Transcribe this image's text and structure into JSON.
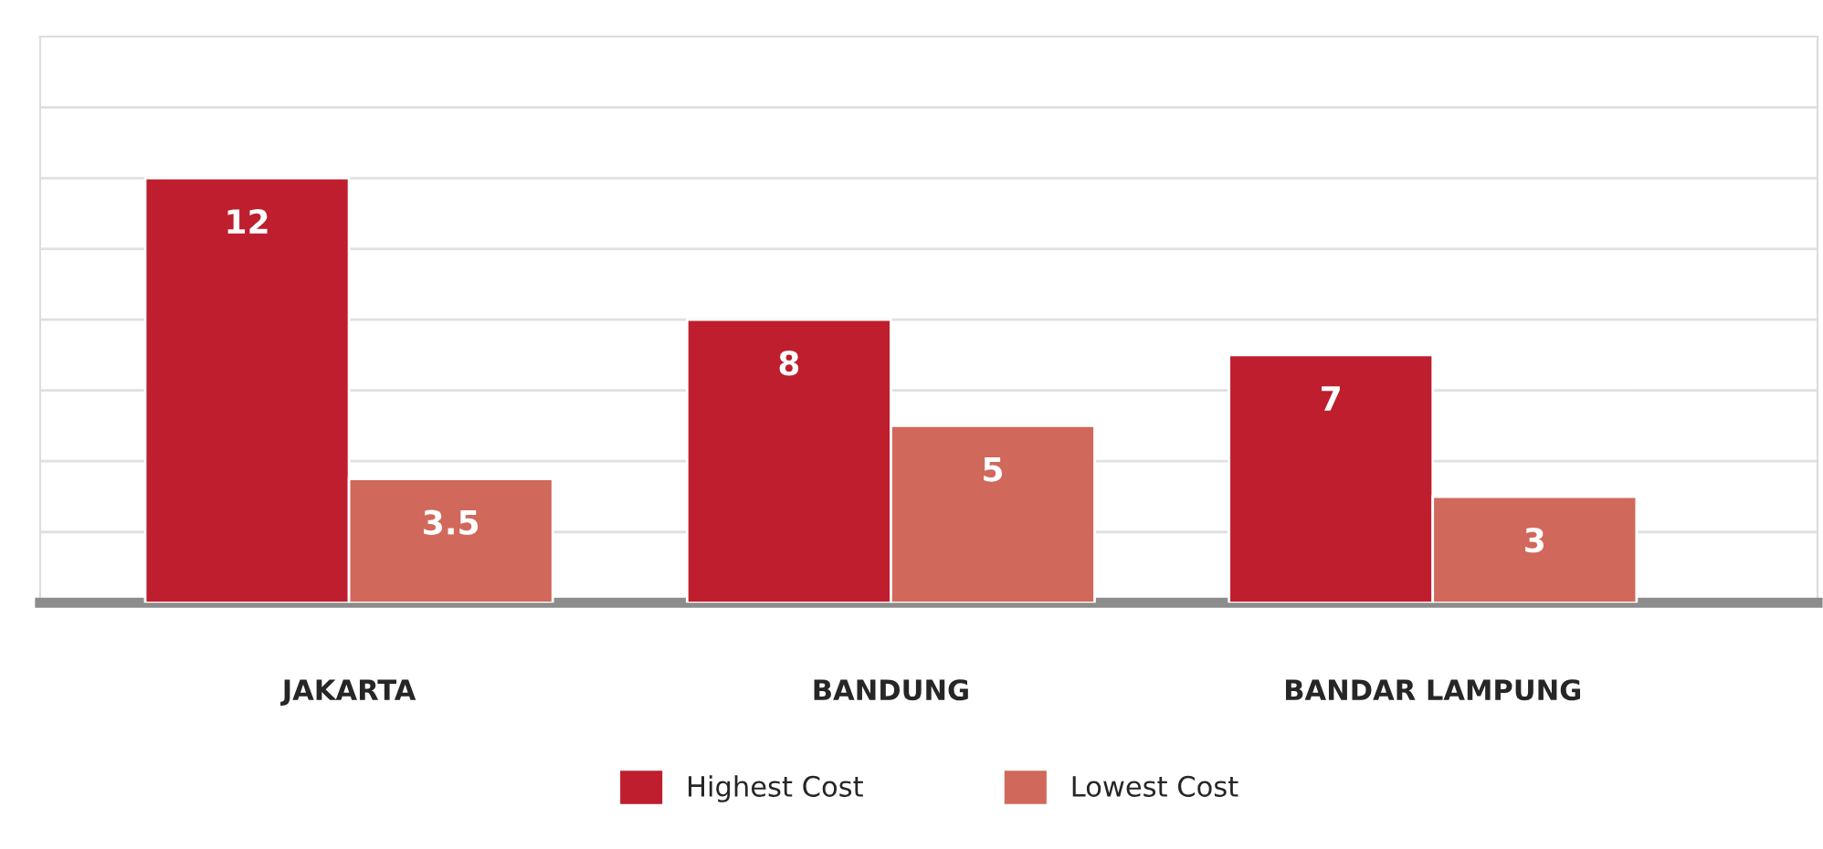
{
  "chart_data": {
    "type": "bar",
    "categories": [
      "JAKARTA",
      "BANDUNG",
      "BANDAR LAMPUNG"
    ],
    "series": [
      {
        "name": "Highest Cost",
        "color": "#be1e2d",
        "values": [
          12,
          8,
          7
        ]
      },
      {
        "name": "Lowest Cost",
        "color": "#d0685b",
        "values": [
          3.5,
          5,
          3
        ]
      }
    ],
    "ylim": [
      0,
      16
    ],
    "yticks": [
      {
        "value": 2,
        "label": null
      },
      {
        "value": 4,
        "label": null
      },
      {
        "value": 6,
        "label": null
      },
      {
        "value": 8,
        "label": null
      },
      {
        "value": 10,
        "label": null
      },
      {
        "value": 12,
        "label": null
      },
      {
        "value": 14,
        "label": null
      }
    ],
    "tick_labels": "x",
    "grid": "y",
    "data_labels": true,
    "legend": "bottom"
  }
}
